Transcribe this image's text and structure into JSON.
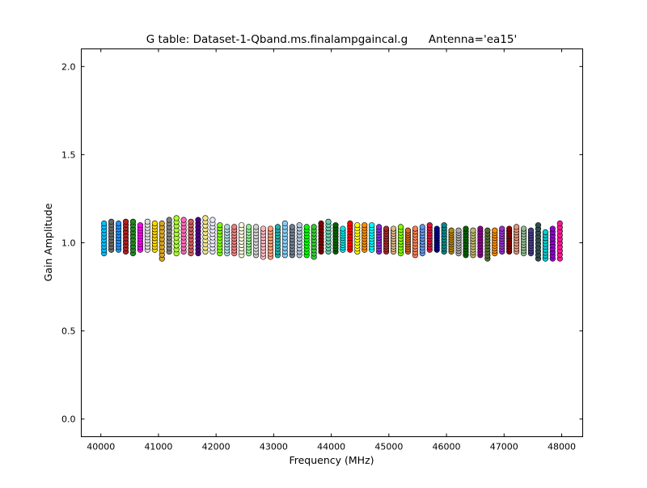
{
  "chart_data": {
    "type": "scatter",
    "title": "G table: Dataset-1-Qband.ms.finalampgaincal.g      Antenna='ea15'",
    "xlabel": "Frequency (MHz)",
    "ylabel": "Gain Amplitude",
    "xlim": [
      39660,
      48365
    ],
    "ylim": [
      -0.1,
      2.1
    ],
    "xticks": [
      40000,
      41000,
      42000,
      43000,
      44000,
      45000,
      46000,
      47000,
      48000
    ],
    "xtick_labels": [
      "40000",
      "41000",
      "42000",
      "43000",
      "44000",
      "45000",
      "46000",
      "47000",
      "48000"
    ],
    "yticks": [
      0.0,
      0.5,
      1.0,
      1.5,
      2.0
    ],
    "ytick_labels": [
      "0.0",
      "0.5",
      "1.0",
      "1.5",
      "2.0"
    ],
    "grid": false,
    "points_per_channel": 10,
    "channel_freq_start": 40056,
    "channel_freq_step": 125.6,
    "channels": [
      {
        "color": "#00bfff",
        "min": 0.94,
        "max": 1.11
      },
      {
        "color": "#696969",
        "min": 0.96,
        "max": 1.12
      },
      {
        "color": "#1e90ff",
        "min": 0.96,
        "max": 1.11
      },
      {
        "color": "#b22222",
        "min": 0.95,
        "max": 1.12
      },
      {
        "color": "#228b22",
        "min": 0.94,
        "max": 1.12
      },
      {
        "color": "#ff00ff",
        "min": 0.96,
        "max": 1.1
      },
      {
        "color": "#dcdcdc",
        "min": 0.96,
        "max": 1.12
      },
      {
        "color": "#ffd700",
        "min": 0.96,
        "max": 1.11
      },
      {
        "color": "#daa520",
        "min": 0.91,
        "max": 1.11
      },
      {
        "color": "#808080",
        "min": 0.95,
        "max": 1.13
      },
      {
        "color": "#adff2f",
        "min": 0.94,
        "max": 1.14
      },
      {
        "color": "#ff69b4",
        "min": 0.95,
        "max": 1.13
      },
      {
        "color": "#cd5c5c",
        "min": 0.94,
        "max": 1.12
      },
      {
        "color": "#4b0082",
        "min": 0.94,
        "max": 1.13
      },
      {
        "color": "#f0e68c",
        "min": 0.95,
        "max": 1.14
      },
      {
        "color": "#e6e6fa",
        "min": 0.95,
        "max": 1.13
      },
      {
        "color": "#7cfc00",
        "min": 0.94,
        "max": 1.1
      },
      {
        "color": "#add8e6",
        "min": 0.94,
        "max": 1.09
      },
      {
        "color": "#f08080",
        "min": 0.94,
        "max": 1.09
      },
      {
        "color": "#ffffe0",
        "min": 0.93,
        "max": 1.1
      },
      {
        "color": "#90ee90",
        "min": 0.94,
        "max": 1.09
      },
      {
        "color": "#d3d3d3",
        "min": 0.93,
        "max": 1.09
      },
      {
        "color": "#ffb6c1",
        "min": 0.92,
        "max": 1.08
      },
      {
        "color": "#ffa07a",
        "min": 0.92,
        "max": 1.08
      },
      {
        "color": "#20b2aa",
        "min": 0.93,
        "max": 1.09
      },
      {
        "color": "#87cefa",
        "min": 0.93,
        "max": 1.11
      },
      {
        "color": "#708090",
        "min": 0.93,
        "max": 1.09
      },
      {
        "color": "#b0c4de",
        "min": 0.93,
        "max": 1.1
      },
      {
        "color": "#00ff00",
        "min": 0.93,
        "max": 1.09
      },
      {
        "color": "#32cd32",
        "min": 0.92,
        "max": 1.09
      },
      {
        "color": "#800000",
        "min": 0.95,
        "max": 1.11
      },
      {
        "color": "#66cdaa",
        "min": 0.95,
        "max": 1.12
      },
      {
        "color": "#006400",
        "min": 0.95,
        "max": 1.1
      },
      {
        "color": "#00e5ee",
        "min": 0.96,
        "max": 1.08
      },
      {
        "color": "#ff0000",
        "min": 0.96,
        "max": 1.11
      },
      {
        "color": "#ffff00",
        "min": 0.95,
        "max": 1.1
      },
      {
        "color": "#ff8c00",
        "min": 0.96,
        "max": 1.1
      },
      {
        "color": "#00ffff",
        "min": 0.96,
        "max": 1.1
      },
      {
        "color": "#8a2be2",
        "min": 0.95,
        "max": 1.09
      },
      {
        "color": "#a52a2a",
        "min": 0.95,
        "max": 1.08
      },
      {
        "color": "#deb887",
        "min": 0.95,
        "max": 1.08
      },
      {
        "color": "#7fff00",
        "min": 0.94,
        "max": 1.09
      },
      {
        "color": "#d2691e",
        "min": 0.95,
        "max": 1.07
      },
      {
        "color": "#ff7f50",
        "min": 0.93,
        "max": 1.08
      },
      {
        "color": "#6495ed",
        "min": 0.94,
        "max": 1.09
      },
      {
        "color": "#dc143c",
        "min": 0.96,
        "max": 1.1
      },
      {
        "color": "#00008b",
        "min": 0.96,
        "max": 1.08
      },
      {
        "color": "#008b8b",
        "min": 0.95,
        "max": 1.1
      },
      {
        "color": "#b8860b",
        "min": 0.95,
        "max": 1.07
      },
      {
        "color": "#a9a9a9",
        "min": 0.94,
        "max": 1.07
      },
      {
        "color": "#006400",
        "min": 0.93,
        "max": 1.08
      },
      {
        "color": "#bdb76b",
        "min": 0.93,
        "max": 1.07
      },
      {
        "color": "#8b008b",
        "min": 0.93,
        "max": 1.08
      },
      {
        "color": "#556b2f",
        "min": 0.91,
        "max": 1.07
      },
      {
        "color": "#ff8c00",
        "min": 0.94,
        "max": 1.07
      },
      {
        "color": "#9932cc",
        "min": 0.95,
        "max": 1.08
      },
      {
        "color": "#8b0000",
        "min": 0.95,
        "max": 1.08
      },
      {
        "color": "#e9967a",
        "min": 0.95,
        "max": 1.09
      },
      {
        "color": "#8fbc8f",
        "min": 0.94,
        "max": 1.08
      },
      {
        "color": "#483d8b",
        "min": 0.94,
        "max": 1.07
      },
      {
        "color": "#2f4f4f",
        "min": 0.91,
        "max": 1.1
      },
      {
        "color": "#00ced1",
        "min": 0.91,
        "max": 1.06
      },
      {
        "color": "#9400d3",
        "min": 0.91,
        "max": 1.08
      },
      {
        "color": "#ff1493",
        "min": 0.91,
        "max": 1.11
      }
    ]
  }
}
